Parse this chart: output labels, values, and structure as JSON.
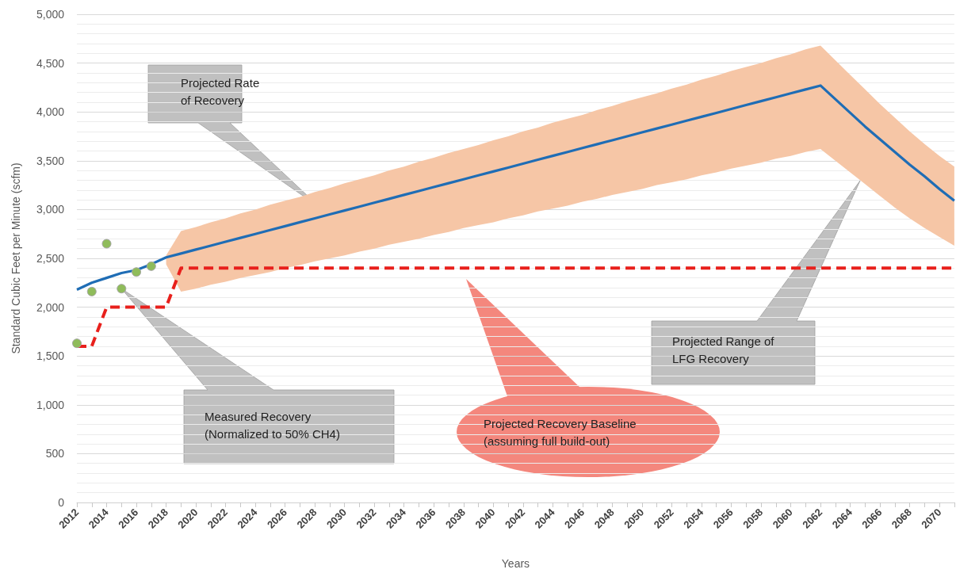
{
  "chart_data": {
    "type": "line",
    "xlabel": "Years",
    "ylabel": "Standard Cubic Feet per Minute (scfm)",
    "categories": [
      "2012",
      null,
      "2014",
      null,
      "2016",
      null,
      "2018",
      null,
      "2020",
      null,
      "2022",
      null,
      "2024",
      null,
      "2026",
      null,
      "2028",
      null,
      "2030",
      null,
      "2032",
      null,
      "2034",
      null,
      "2036",
      null,
      "2038",
      null,
      "2040",
      null,
      "2042",
      null,
      "2044",
      null,
      "2046",
      null,
      "2048",
      null,
      "2050",
      null,
      "2052",
      null,
      "2054",
      null,
      "2056",
      null,
      "2058",
      null,
      "2060",
      null,
      "2062",
      null,
      "2064",
      null,
      "2066",
      null,
      "2068",
      null,
      "2070",
      null
    ],
    "ylim": [
      0,
      5000
    ],
    "yticks": [
      0,
      500,
      {
        "value": 1000,
        "label": "1,000"
      },
      {
        "value": 1500,
        "label": "1,500"
      },
      {
        "value": 2000,
        "label": "2,000"
      },
      {
        "value": 2500,
        "label": "2,500"
      },
      {
        "value": 3000,
        "label": "3,000"
      },
      {
        "value": 3500,
        "label": "3,500"
      },
      {
        "value": 4000,
        "label": "4,000"
      },
      {
        "value": 4500,
        "label": "4,500"
      },
      {
        "value": 5000,
        "label": "5,000"
      }
    ],
    "grid": "y",
    "series": [
      {
        "color": "#1f6db5",
        "line_style": "solid",
        "marker": "none",
        "values": [
          2180,
          2250,
          2300,
          2350,
          2380,
          2440,
          2510,
          2550,
          2590,
          2630,
          2670,
          2710,
          2750,
          2790,
          2830,
          2870,
          2910,
          2950,
          2990,
          3030,
          3070,
          3110,
          3150,
          3190,
          3230,
          3270,
          3310,
          3350,
          3390,
          3430,
          3470,
          3510,
          3550,
          3590,
          3630,
          3670,
          3710,
          3750,
          3790,
          3830,
          3870,
          3910,
          3950,
          3990,
          4030,
          4070,
          4110,
          4150,
          4190,
          4230,
          4270,
          4130,
          3990,
          3850,
          3720,
          3590,
          3460,
          3340,
          3210,
          3090
        ],
        "lower": [
          null,
          null,
          null,
          null,
          null,
          null,
          2440,
          2160,
          2190,
          2230,
          2260,
          2300,
          2330,
          2360,
          2400,
          2430,
          2470,
          2500,
          2530,
          2570,
          2600,
          2640,
          2670,
          2700,
          2740,
          2770,
          2810,
          2840,
          2870,
          2910,
          2940,
          2980,
          3010,
          3040,
          3080,
          3110,
          3150,
          3180,
          3210,
          3250,
          3280,
          3310,
          3350,
          3380,
          3420,
          3450,
          3480,
          3520,
          3550,
          3590,
          3620,
          3500,
          3380,
          3260,
          3140,
          3020,
          2910,
          2810,
          2720,
          2630
        ],
        "upper": [
          null,
          null,
          null,
          null,
          null,
          null,
          2530,
          2780,
          2820,
          2870,
          2910,
          2960,
          3000,
          3050,
          3090,
          3130,
          3180,
          3220,
          3270,
          3310,
          3350,
          3400,
          3440,
          3490,
          3530,
          3580,
          3620,
          3660,
          3710,
          3750,
          3800,
          3840,
          3890,
          3930,
          3970,
          4020,
          4060,
          4110,
          4150,
          4190,
          4240,
          4280,
          4330,
          4370,
          4420,
          4460,
          4500,
          4550,
          4590,
          4640,
          4680,
          4530,
          4380,
          4230,
          4080,
          3940,
          3800,
          3670,
          3550,
          3440
        ]
      },
      {
        "color": "#e8201c",
        "line_style": "dashed",
        "marker": "none",
        "values": [
          1600,
          1600,
          2000,
          2000,
          2000,
          2000,
          2000,
          2400,
          2400,
          2400,
          2400,
          2400,
          2400,
          2400,
          2400,
          2400,
          2400,
          2400,
          2400,
          2400,
          2400,
          2400,
          2400,
          2400,
          2400,
          2400,
          2400,
          2400,
          2400,
          2400,
          2400,
          2400,
          2400,
          2400,
          2400,
          2400,
          2400,
          2400,
          2400,
          2400,
          2400,
          2400,
          2400,
          2400,
          2400,
          2400,
          2400,
          2400,
          2400,
          2400,
          2400,
          2400,
          2400,
          2400,
          2400,
          2400,
          2400,
          2400,
          2400,
          2400
        ]
      },
      {
        "type": "scatter",
        "color": "#8fbc5a",
        "marker": "circle",
        "values": [
          1630,
          2160,
          2650,
          2190,
          2360,
          2420,
          null,
          null,
          null,
          null,
          null,
          null,
          null,
          null,
          null,
          null,
          null,
          null,
          null,
          null,
          null,
          null,
          null,
          null,
          null,
          null,
          null,
          null,
          null,
          null,
          null,
          null,
          null,
          null,
          null,
          null,
          null,
          null,
          null,
          null,
          null,
          null,
          null,
          null,
          null,
          null,
          null,
          null,
          null,
          null,
          null,
          null,
          null,
          null,
          null,
          null,
          null,
          null,
          null,
          null
        ]
      }
    ],
    "annotations": [
      "Projected Rate\nof Recovery",
      "Measured Recovery\n(Normalized to 50% CH4)",
      "Projected Recovery Baseline\n(assuming full build-out)",
      "Projected Range of\nLFG Recovery"
    ]
  }
}
